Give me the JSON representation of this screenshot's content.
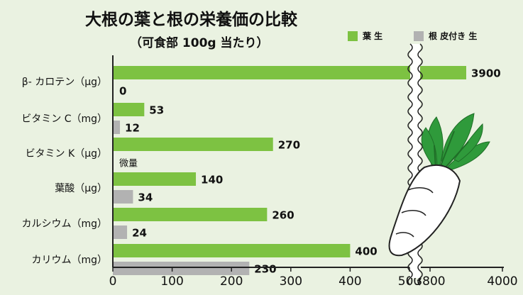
{
  "title": "大根の葉と根の栄養価の比較",
  "subtitle": "（可食部 100g 当たり）",
  "colors": {
    "leaf": "#7dc242",
    "root": "#b2b2b2",
    "background": "#eaf2e1",
    "axis": "#222222"
  },
  "chart_data": {
    "type": "bar",
    "orientation": "horizontal",
    "categories": [
      "β- カロテン（μg）",
      "ビタミン C（mg）",
      "ビタミン K（μg）",
      "葉酸（μg）",
      "カルシウム（mg）",
      "カリウム（mg）"
    ],
    "series": [
      {
        "name": "葉 生",
        "color": "#7dc242",
        "values": [
          3900,
          53,
          270,
          140,
          260,
          400
        ],
        "labels": [
          "3900",
          "53",
          "270",
          "140",
          "260",
          "400"
        ]
      },
      {
        "name": "根 皮付き 生",
        "color": "#b2b2b2",
        "values": [
          0,
          12,
          null,
          34,
          24,
          230
        ],
        "labels": [
          "0",
          "12",
          "微量",
          "34",
          "24",
          "230"
        ]
      }
    ],
    "x_ticks": [
      "0",
      "100",
      "200",
      "300",
      "400",
      "500",
      "3800",
      "4000"
    ],
    "xlim": [
      0,
      4000
    ],
    "axis_break": {
      "from": 500,
      "to": 3800
    },
    "legend_position": "top-right",
    "grid": false
  }
}
